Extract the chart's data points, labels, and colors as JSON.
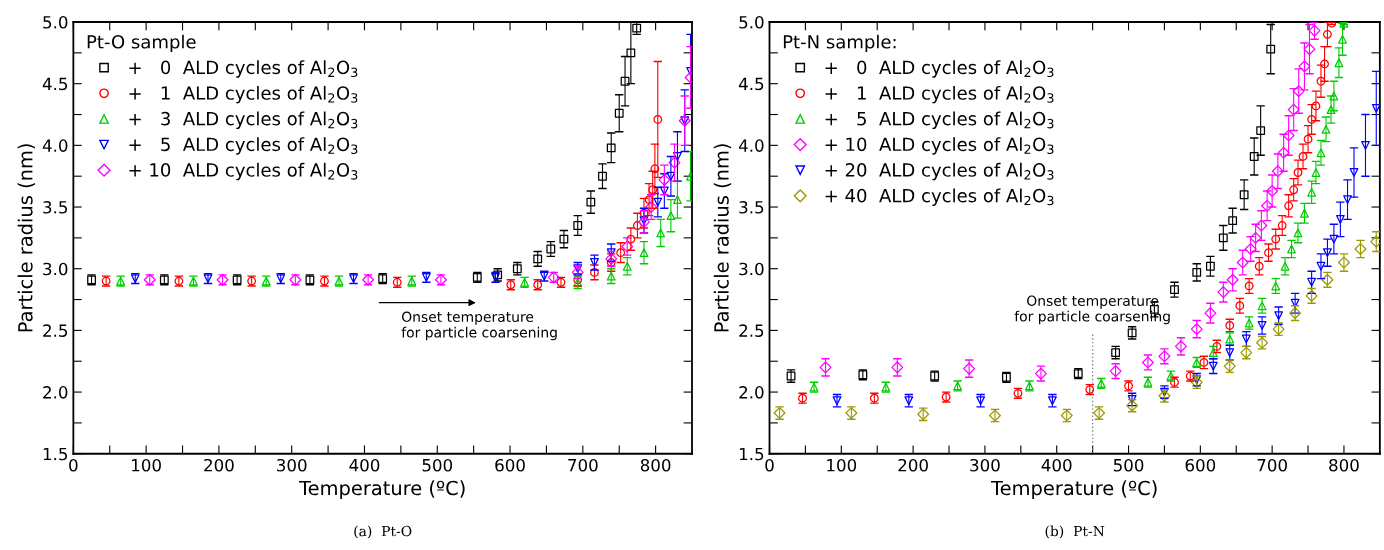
{
  "chart_data": [
    {
      "type": "scatter",
      "xlabel": "Temperature (ºC)",
      "ylabel": "Particle radius (nm)",
      "legend_title": "Pt-O sample",
      "legend": "top left",
      "grid": false,
      "xlim": [
        0,
        850
      ],
      "ylim": [
        1.5,
        5.0
      ],
      "xticks": [
        0,
        {
          "value": 50,
          "label": null
        },
        100,
        {
          "value": 150,
          "label": null
        },
        200,
        {
          "value": 250,
          "label": null
        },
        300,
        {
          "value": 350,
          "label": null
        },
        400,
        {
          "value": 450,
          "label": null
        },
        500,
        {
          "value": 550,
          "label": null
        },
        600,
        {
          "value": 650,
          "label": null
        },
        700,
        {
          "value": 750,
          "label": null
        },
        800
      ],
      "yticks": [
        1.5,
        {
          "value": 1.75,
          "label": null
        },
        {
          "value": 2,
          "label": "2.0"
        },
        {
          "value": 2.25,
          "label": null
        },
        2.5,
        {
          "value": 2.75,
          "label": null
        },
        {
          "value": 3,
          "label": "3.0"
        },
        {
          "value": 3.25,
          "label": null
        },
        3.5,
        {
          "value": 3.75,
          "label": null
        },
        {
          "value": 4,
          "label": "4.0"
        },
        {
          "value": 4.25,
          "label": null
        },
        4.5,
        {
          "value": 4.75,
          "label": null
        },
        {
          "value": 5,
          "label": "5.0"
        }
      ],
      "annotations": [
        "Onset temperature\nfor particle coarsening",
        "(a)  Pt-O"
      ],
      "series": [
        {
          "name": "+   0  ALD cycles of Al$_{2}$O$_{3}$",
          "color": "#000000",
          "marker": "square",
          "x": [
            25,
            125,
            225,
            325,
            425,
            555,
            583,
            610,
            638,
            656,
            674,
            693,
            711,
            727,
            739,
            750,
            758,
            766,
            774
          ],
          "values": [
            2.91,
            2.91,
            2.91,
            2.91,
            2.92,
            2.93,
            2.95,
            3.0,
            3.08,
            3.16,
            3.24,
            3.35,
            3.54,
            3.75,
            3.98,
            4.26,
            4.52,
            4.75,
            4.95
          ],
          "errors": [
            0.04,
            0.04,
            0.04,
            0.04,
            0.04,
            0.04,
            0.05,
            0.05,
            0.06,
            0.06,
            0.07,
            0.08,
            0.09,
            0.1,
            0.12,
            0.15,
            0.2,
            0.25,
            0.05
          ]
        },
        {
          "name": "+   1  ALD cycles of Al$_{2}$O$_{3}$",
          "color": "#ff0000",
          "marker": "circle",
          "x": [
            45,
            145,
            245,
            345,
            445,
            601,
            638,
            670,
            693,
            716,
            739,
            752,
            766,
            775,
            784,
            791,
            796,
            799,
            803
          ],
          "values": [
            2.9,
            2.9,
            2.9,
            2.9,
            2.89,
            2.87,
            2.87,
            2.89,
            2.91,
            2.97,
            3.05,
            3.13,
            3.24,
            3.35,
            3.45,
            3.56,
            3.64,
            3.81,
            4.21
          ],
          "errors": [
            0.04,
            0.04,
            0.04,
            0.04,
            0.04,
            0.04,
            0.04,
            0.04,
            0.05,
            0.06,
            0.07,
            0.08,
            0.09,
            0.1,
            0.12,
            0.13,
            0.15,
            0.2,
            0.47
          ]
        },
        {
          "name": "+   3  ALD cycles of Al$_{2}$O$_{3}$",
          "color": "#00cc00",
          "marker": "triangle",
          "x": [
            65,
            165,
            265,
            365,
            465,
            620,
            693,
            739,
            761,
            784,
            807,
            821,
            830,
            848
          ],
          "values": [
            2.9,
            2.9,
            2.9,
            2.9,
            2.9,
            2.89,
            2.89,
            2.94,
            3.02,
            3.13,
            3.29,
            3.43,
            3.56,
            3.75
          ],
          "errors": [
            0.04,
            0.04,
            0.04,
            0.04,
            0.04,
            0.04,
            0.05,
            0.06,
            0.07,
            0.09,
            0.11,
            0.13,
            0.15,
            0.2
          ]
        },
        {
          "name": "+   5  ALD cycles of Al$_{2}$O$_{3}$",
          "color": "#0000ff",
          "marker": "triangle_down",
          "x": [
            85,
            185,
            285,
            385,
            485,
            580,
            647,
            693,
            716,
            739,
            784,
            803,
            812,
            821,
            830,
            840,
            848
          ],
          "values": [
            2.92,
            2.92,
            2.92,
            2.92,
            2.93,
            2.93,
            2.94,
            3.0,
            3.05,
            3.13,
            3.39,
            3.54,
            3.63,
            3.75,
            3.91,
            4.2,
            4.6
          ],
          "errors": [
            0.04,
            0.04,
            0.04,
            0.04,
            0.04,
            0.04,
            0.04,
            0.05,
            0.06,
            0.07,
            0.1,
            0.12,
            0.14,
            0.16,
            0.2,
            0.25,
            0.3
          ]
        },
        {
          "name": "+ 10  ALD cycles of Al$_{2}$O$_{3}$",
          "color": "#ff00ff",
          "marker": "diamond",
          "x": [
            105,
            205,
            305,
            405,
            505,
            660,
            693,
            739,
            761,
            784,
            794,
            812,
            826,
            840,
            848
          ],
          "values": [
            2.91,
            2.91,
            2.91,
            2.91,
            2.91,
            2.93,
            2.97,
            3.08,
            3.18,
            3.38,
            3.5,
            3.72,
            3.86,
            4.2,
            4.55
          ],
          "errors": [
            0.04,
            0.04,
            0.04,
            0.04,
            0.04,
            0.04,
            0.05,
            0.06,
            0.07,
            0.09,
            0.1,
            0.12,
            0.15,
            0.2,
            0.25
          ]
        }
      ]
    },
    {
      "type": "scatter",
      "xlabel": "Temperature (ºC)",
      "ylabel": "Particle radius (nm)",
      "legend_title": "Pt-N sample:",
      "legend": "top left",
      "grid": false,
      "xlim": [
        0,
        850
      ],
      "ylim": [
        1.5,
        5.0
      ],
      "xticks": [
        0,
        {
          "value": 50,
          "label": null
        },
        100,
        {
          "value": 150,
          "label": null
        },
        200,
        {
          "value": 250,
          "label": null
        },
        300,
        {
          "value": 350,
          "label": null
        },
        400,
        {
          "value": 450,
          "label": null
        },
        500,
        {
          "value": 550,
          "label": null
        },
        600,
        {
          "value": 650,
          "label": null
        },
        700,
        {
          "value": 750,
          "label": null
        },
        800
      ],
      "yticks": [
        1.5,
        {
          "value": 1.75,
          "label": null
        },
        {
          "value": 2,
          "label": "2.0"
        },
        {
          "value": 2.25,
          "label": null
        },
        2.5,
        {
          "value": 2.75,
          "label": null
        },
        {
          "value": 3,
          "label": "3.0"
        },
        {
          "value": 3.25,
          "label": null
        },
        3.5,
        {
          "value": 3.75,
          "label": null
        },
        {
          "value": 4,
          "label": "4.0"
        },
        {
          "value": 4.25,
          "label": null
        },
        4.5,
        {
          "value": 4.75,
          "label": null
        },
        {
          "value": 5,
          "label": "5.0"
        }
      ],
      "ref_lines": [
        {
          "axis": "x",
          "value": 450,
          "color": "#888888",
          "line_style": "dotted"
        }
      ],
      "annotations": [
        "Onset temperature\nfor particle coarsening",
        "(b)  Pt-N"
      ],
      "series": [
        {
          "name": "+   0  ALD cycles of Al$_{2}$O$_{3}$",
          "color": "#000000",
          "marker": "square",
          "x": [
            30,
            130,
            230,
            330,
            430,
            482,
            505,
            536,
            564,
            595,
            614,
            632,
            645,
            661,
            675,
            684,
            698
          ],
          "values": [
            2.13,
            2.14,
            2.13,
            2.12,
            2.15,
            2.32,
            2.48,
            2.67,
            2.83,
            2.97,
            3.02,
            3.25,
            3.39,
            3.6,
            3.91,
            4.12,
            4.78
          ],
          "errors": [
            0.05,
            0.04,
            0.04,
            0.04,
            0.04,
            0.05,
            0.05,
            0.06,
            0.06,
            0.07,
            0.08,
            0.1,
            0.1,
            0.12,
            0.15,
            0.2,
            0.2
          ]
        },
        {
          "name": "+   1  ALD cycles of Al$_{2}$O$_{3}$",
          "color": "#ff0000",
          "marker": "circle",
          "x": [
            46,
            146,
            246,
            346,
            446,
            500,
            564,
            586,
            605,
            623,
            641,
            655,
            668,
            682,
            695,
            705,
            714,
            723,
            730,
            736,
            743,
            750,
            755,
            761,
            768,
            773,
            777,
            783
          ],
          "values": [
            1.95,
            1.95,
            1.96,
            1.99,
            2.02,
            2.05,
            2.08,
            2.13,
            2.24,
            2.37,
            2.54,
            2.7,
            2.86,
            3.02,
            3.13,
            3.24,
            3.35,
            3.51,
            3.64,
            3.78,
            3.91,
            4.05,
            4.21,
            4.32,
            4.52,
            4.66,
            4.9,
            4.99
          ],
          "errors": [
            0.04,
            0.04,
            0.04,
            0.04,
            0.04,
            0.04,
            0.04,
            0.04,
            0.05,
            0.05,
            0.05,
            0.06,
            0.06,
            0.07,
            0.07,
            0.08,
            0.08,
            0.09,
            0.09,
            0.1,
            0.1,
            0.11,
            0.12,
            0.12,
            0.13,
            0.14,
            0.1,
            0.01
          ]
        },
        {
          "name": "+   5  ALD cycles of Al$_{2}$O$_{3}$",
          "color": "#00cc00",
          "marker": "triangle",
          "x": [
            62,
            162,
            262,
            362,
            462,
            527,
            559,
            595,
            618,
            641,
            668,
            686,
            705,
            718,
            727,
            736,
            745,
            755,
            761,
            768,
            775,
            782,
            786,
            793,
            798,
            800
          ],
          "values": [
            2.04,
            2.04,
            2.05,
            2.05,
            2.07,
            2.08,
            2.13,
            2.24,
            2.32,
            2.43,
            2.56,
            2.7,
            2.86,
            3.02,
            3.16,
            3.29,
            3.45,
            3.62,
            3.78,
            3.94,
            4.13,
            4.29,
            4.4,
            4.67,
            4.86,
            4.99
          ],
          "errors": [
            0.04,
            0.04,
            0.04,
            0.04,
            0.04,
            0.04,
            0.04,
            0.04,
            0.05,
            0.05,
            0.05,
            0.06,
            0.06,
            0.07,
            0.07,
            0.08,
            0.08,
            0.09,
            0.09,
            0.1,
            0.1,
            0.11,
            0.12,
            0.12,
            0.13,
            0.01
          ]
        },
        {
          "name": "+ 10  ALD cycles of Al$_{2}$O$_{3}$",
          "color": "#ff00ff",
          "marker": "diamond",
          "x": [
            78,
            178,
            278,
            378,
            482,
            527,
            550,
            573,
            595,
            614,
            632,
            645,
            659,
            670,
            677,
            685,
            693,
            700,
            708,
            716,
            723,
            730,
            737,
            745,
            752,
            759
          ],
          "values": [
            2.2,
            2.2,
            2.19,
            2.15,
            2.17,
            2.24,
            2.29,
            2.37,
            2.51,
            2.64,
            2.81,
            2.91,
            3.05,
            3.16,
            3.25,
            3.35,
            3.51,
            3.63,
            3.79,
            3.94,
            4.08,
            4.29,
            4.44,
            4.64,
            4.78,
            4.93
          ],
          "errors": [
            0.07,
            0.07,
            0.07,
            0.06,
            0.06,
            0.06,
            0.06,
            0.07,
            0.07,
            0.08,
            0.08,
            0.09,
            0.1,
            0.1,
            0.11,
            0.12,
            0.12,
            0.13,
            0.14,
            0.15,
            0.16,
            0.17,
            0.18,
            0.19,
            0.2,
            0.07
          ]
        },
        {
          "name": "+ 20  ALD cycles of Al$_{2}$O$_{3}$",
          "color": "#0000ff",
          "marker": "triangle_down",
          "x": [
            94,
            194,
            294,
            394,
            505,
            550,
            595,
            618,
            641,
            664,
            686,
            709,
            732,
            755,
            768,
            777,
            786,
            795,
            805,
            814,
            830,
            845
          ],
          "values": [
            1.93,
            1.93,
            1.93,
            1.93,
            1.94,
            2.0,
            2.1,
            2.21,
            2.32,
            2.43,
            2.54,
            2.62,
            2.72,
            2.89,
            3.02,
            3.13,
            3.24,
            3.4,
            3.56,
            3.78,
            4.0,
            4.3
          ],
          "errors": [
            0.05,
            0.05,
            0.05,
            0.05,
            0.05,
            0.05,
            0.05,
            0.06,
            0.06,
            0.06,
            0.07,
            0.07,
            0.08,
            0.09,
            0.1,
            0.11,
            0.12,
            0.14,
            0.16,
            0.2,
            0.25,
            0.3
          ]
        },
        {
          "name": "+ 40  ALD cycles of Al$_{2}$O$_{3}$",
          "color": "#999900",
          "marker": "diamond",
          "x": [
            14,
            114,
            214,
            314,
            414,
            459,
            505,
            550,
            595,
            641,
            664,
            686,
            709,
            732,
            755,
            777,
            800,
            823,
            845
          ],
          "values": [
            1.83,
            1.83,
            1.82,
            1.81,
            1.81,
            1.83,
            1.89,
            1.97,
            2.08,
            2.21,
            2.32,
            2.4,
            2.51,
            2.64,
            2.78,
            2.91,
            3.05,
            3.16,
            3.22
          ],
          "errors": [
            0.05,
            0.05,
            0.05,
            0.05,
            0.05,
            0.05,
            0.05,
            0.05,
            0.05,
            0.05,
            0.05,
            0.05,
            0.05,
            0.06,
            0.06,
            0.06,
            0.07,
            0.07,
            0.08
          ]
        }
      ]
    }
  ]
}
